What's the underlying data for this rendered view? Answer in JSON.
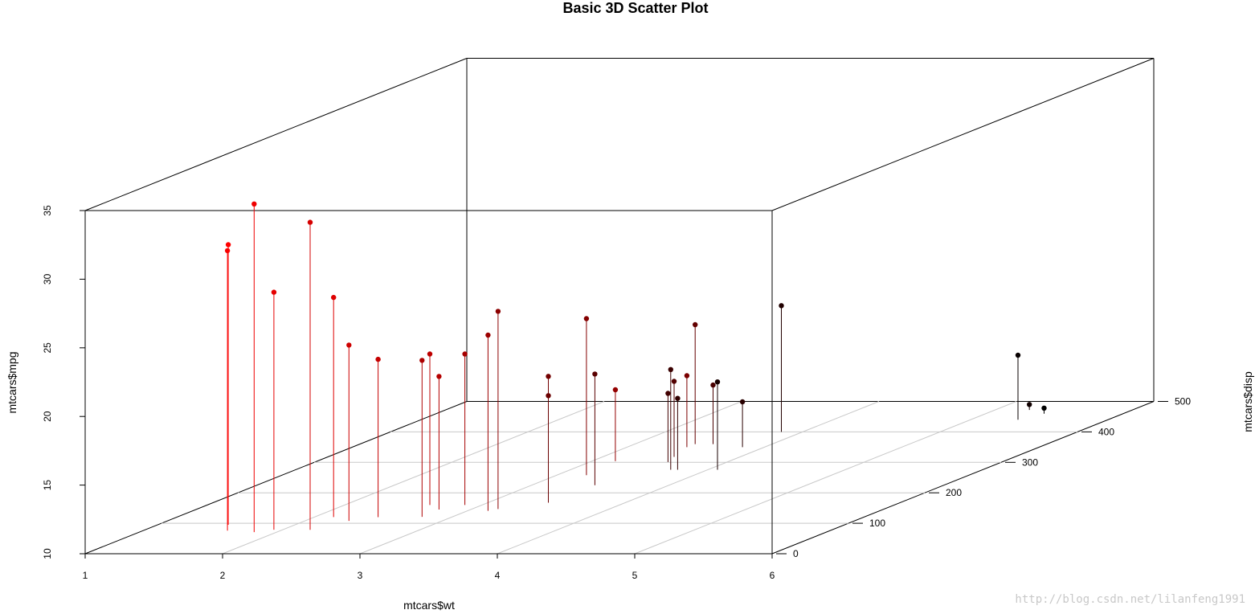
{
  "chart_data": {
    "type": "scatter",
    "title": "Basic 3D Scatter Plot",
    "xlabel": "mtcars$wt",
    "ylabel": "mtcars$disp",
    "zlabel": "mtcars$mpg",
    "xlim": [
      1,
      6
    ],
    "ylim": [
      0,
      500
    ],
    "zlim": [
      10,
      35
    ],
    "x_ticks": [
      "1",
      "2",
      "3",
      "4",
      "5",
      "6"
    ],
    "y_ticks": [
      "0",
      "100",
      "200",
      "300",
      "400",
      "500"
    ],
    "z_ticks": [
      "10",
      "15",
      "20",
      "25",
      "30",
      "35"
    ],
    "grid": true,
    "drop_lines": true,
    "color_high": "#ff0000",
    "color_low": "#000000",
    "points": [
      {
        "wt": 1.513,
        "disp": 95.1,
        "mpg": 30.4
      },
      {
        "wt": 1.615,
        "disp": 75.7,
        "mpg": 30.4
      },
      {
        "wt": 1.835,
        "disp": 71.1,
        "mpg": 33.9
      },
      {
        "wt": 1.935,
        "disp": 79.0,
        "mpg": 27.3
      },
      {
        "wt": 2.14,
        "disp": 120.3,
        "mpg": 26.0
      },
      {
        "wt": 2.2,
        "disp": 78.7,
        "mpg": 32.4
      },
      {
        "wt": 2.32,
        "disp": 108.0,
        "mpg": 22.8
      },
      {
        "wt": 2.465,
        "disp": 120.1,
        "mpg": 21.5
      },
      {
        "wt": 2.62,
        "disp": 160.0,
        "mpg": 21.0
      },
      {
        "wt": 2.77,
        "disp": 145.0,
        "mpg": 19.7
      },
      {
        "wt": 2.78,
        "disp": 121.0,
        "mpg": 21.4
      },
      {
        "wt": 2.875,
        "disp": 160.0,
        "mpg": 21.0
      },
      {
        "wt": 3.15,
        "disp": 140.8,
        "mpg": 22.8
      },
      {
        "wt": 3.17,
        "disp": 304.0,
        "mpg": 15.2
      },
      {
        "wt": 3.19,
        "disp": 146.7,
        "mpg": 24.4
      },
      {
        "wt": 3.215,
        "disp": 258.0,
        "mpg": 21.4
      },
      {
        "wt": 3.435,
        "disp": 350.0,
        "mpg": 15.2
      },
      {
        "wt": 3.44,
        "disp": 167.6,
        "mpg": 19.2
      },
      {
        "wt": 3.44,
        "disp": 167.6,
        "mpg": 17.8
      },
      {
        "wt": 3.44,
        "disp": 360.0,
        "mpg": 18.7
      },
      {
        "wt": 3.46,
        "disp": 225.0,
        "mpg": 18.1
      },
      {
        "wt": 3.52,
        "disp": 318.0,
        "mpg": 15.5
      },
      {
        "wt": 3.57,
        "disp": 360.0,
        "mpg": 14.3
      },
      {
        "wt": 3.57,
        "disp": 301.0,
        "mpg": 15.0
      },
      {
        "wt": 3.73,
        "disp": 275.8,
        "mpg": 17.3
      },
      {
        "wt": 3.78,
        "disp": 275.8,
        "mpg": 15.2
      },
      {
        "wt": 3.84,
        "disp": 350.0,
        "mpg": 13.3
      },
      {
        "wt": 3.845,
        "disp": 400.0,
        "mpg": 19.2
      },
      {
        "wt": 4.07,
        "disp": 275.8,
        "mpg": 16.4
      },
      {
        "wt": 5.25,
        "disp": 472.0,
        "mpg": 10.4
      },
      {
        "wt": 5.345,
        "disp": 440.0,
        "mpg": 14.7
      },
      {
        "wt": 5.424,
        "disp": 460.0,
        "mpg": 10.4
      }
    ]
  },
  "watermark": "http://blog.csdn.net/lilanfeng1991"
}
